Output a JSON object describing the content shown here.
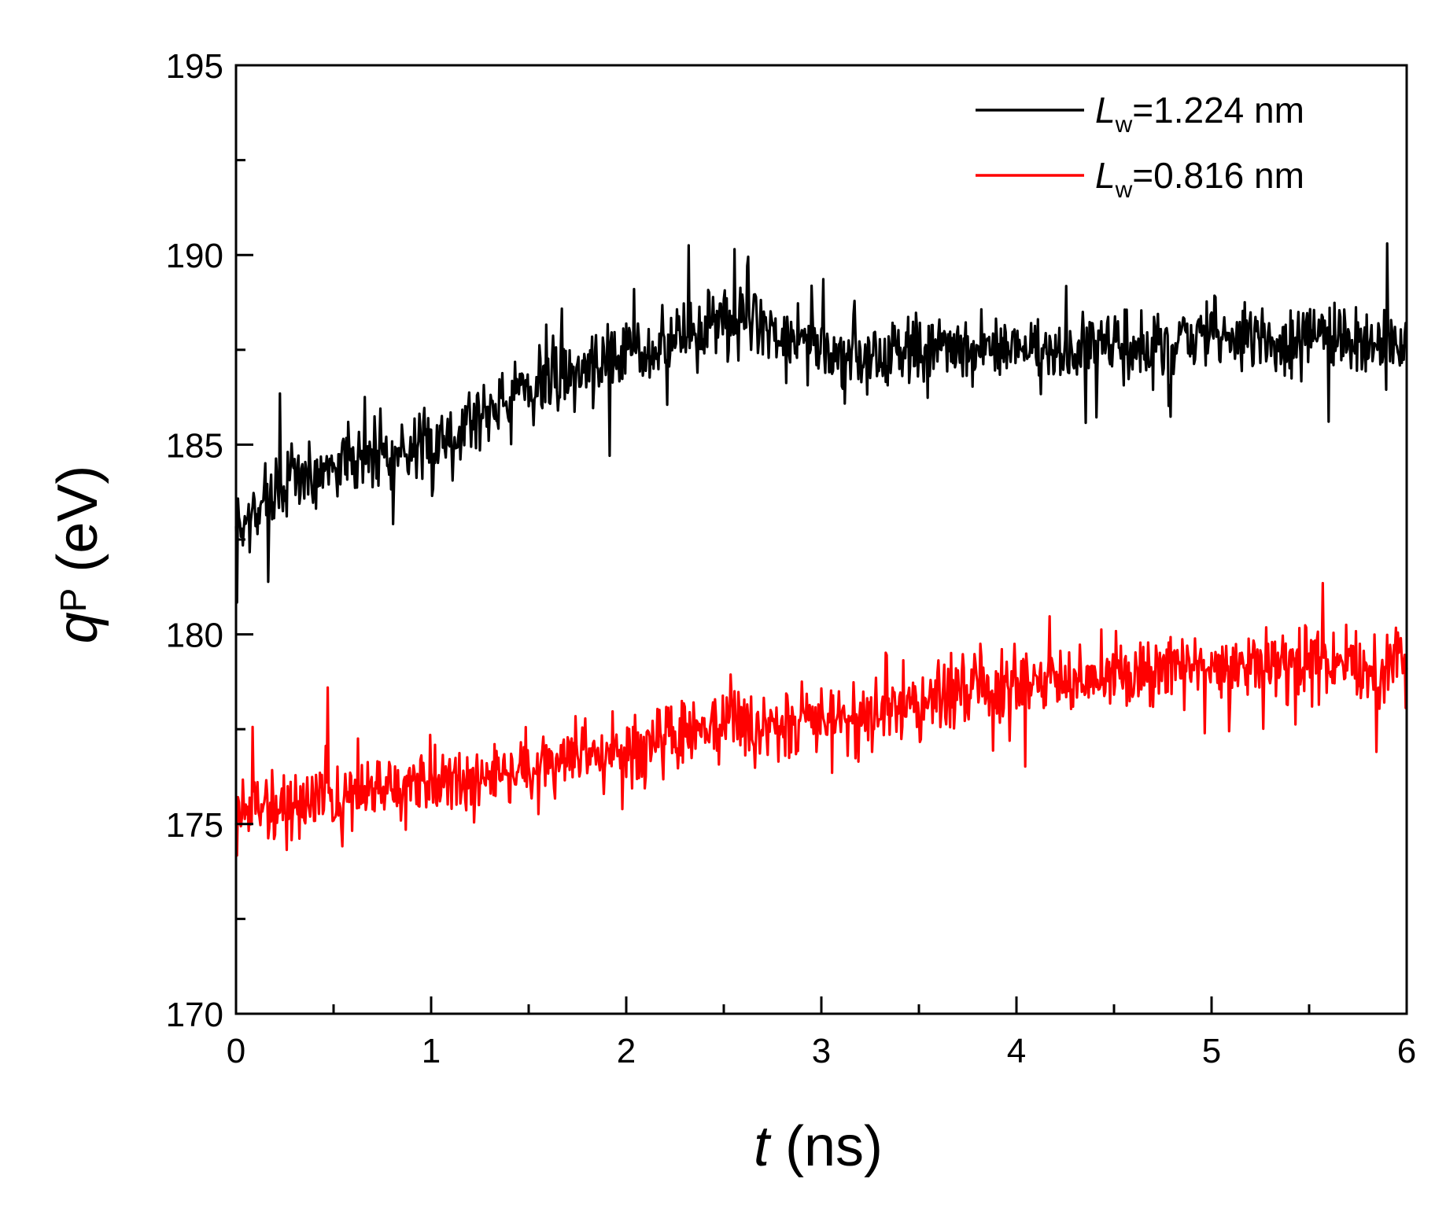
{
  "chart_data": {
    "type": "line",
    "xlabel": {
      "var": "t",
      "unit": " (ns)"
    },
    "ylabel": {
      "var": "q",
      "sub": "P",
      "unit": " (eV)"
    },
    "xlim": [
      0,
      6
    ],
    "ylim": [
      170,
      195
    ],
    "x_ticks": [
      0,
      1,
      2,
      3,
      4,
      5,
      6
    ],
    "x_minor_step": 0.5,
    "y_ticks": [
      170,
      175,
      180,
      185,
      190,
      195
    ],
    "y_minor_step": 2.5,
    "grid": false,
    "legend_position": "top-right",
    "series": [
      {
        "name": "=1.224 nm",
        "label_var": "L",
        "label_sub": "w",
        "color": "#000000",
        "x": [
          0.0,
          0.25,
          0.5,
          0.75,
          1.0,
          1.25,
          1.5,
          1.75,
          2.0,
          2.25,
          2.5,
          2.75,
          3.0,
          3.25,
          3.5,
          3.75,
          4.0,
          4.25,
          4.5,
          4.75,
          5.0,
          5.25,
          5.5,
          5.75,
          6.0
        ],
        "y": [
          182.6,
          184.0,
          184.5,
          184.9,
          184.8,
          185.9,
          186.5,
          187.0,
          187.5,
          187.8,
          188.3,
          188.1,
          187.4,
          187.3,
          187.5,
          187.4,
          187.5,
          187.4,
          187.6,
          187.6,
          187.9,
          187.7,
          187.8,
          187.7,
          187.6
        ],
        "noise_amplitude": 1.4,
        "seed": 7
      },
      {
        "name": "=0.816 nm",
        "label_var": "L",
        "label_sub": "w",
        "color": "#ff0000",
        "x": [
          0.0,
          0.25,
          0.5,
          0.75,
          1.0,
          1.25,
          1.5,
          1.75,
          2.0,
          2.25,
          2.5,
          2.75,
          3.0,
          3.25,
          3.5,
          3.75,
          4.0,
          4.25,
          4.5,
          4.75,
          5.0,
          5.25,
          5.5,
          5.75,
          6.0
        ],
        "y": [
          175.4,
          175.5,
          175.8,
          175.9,
          176.0,
          176.1,
          176.4,
          176.7,
          177.1,
          177.4,
          177.6,
          177.5,
          177.7,
          177.9,
          178.2,
          178.5,
          178.8,
          178.9,
          179.0,
          179.1,
          179.2,
          179.2,
          179.3,
          179.2,
          179.1
        ],
        "noise_amplitude": 1.35,
        "seed": 19
      }
    ]
  }
}
